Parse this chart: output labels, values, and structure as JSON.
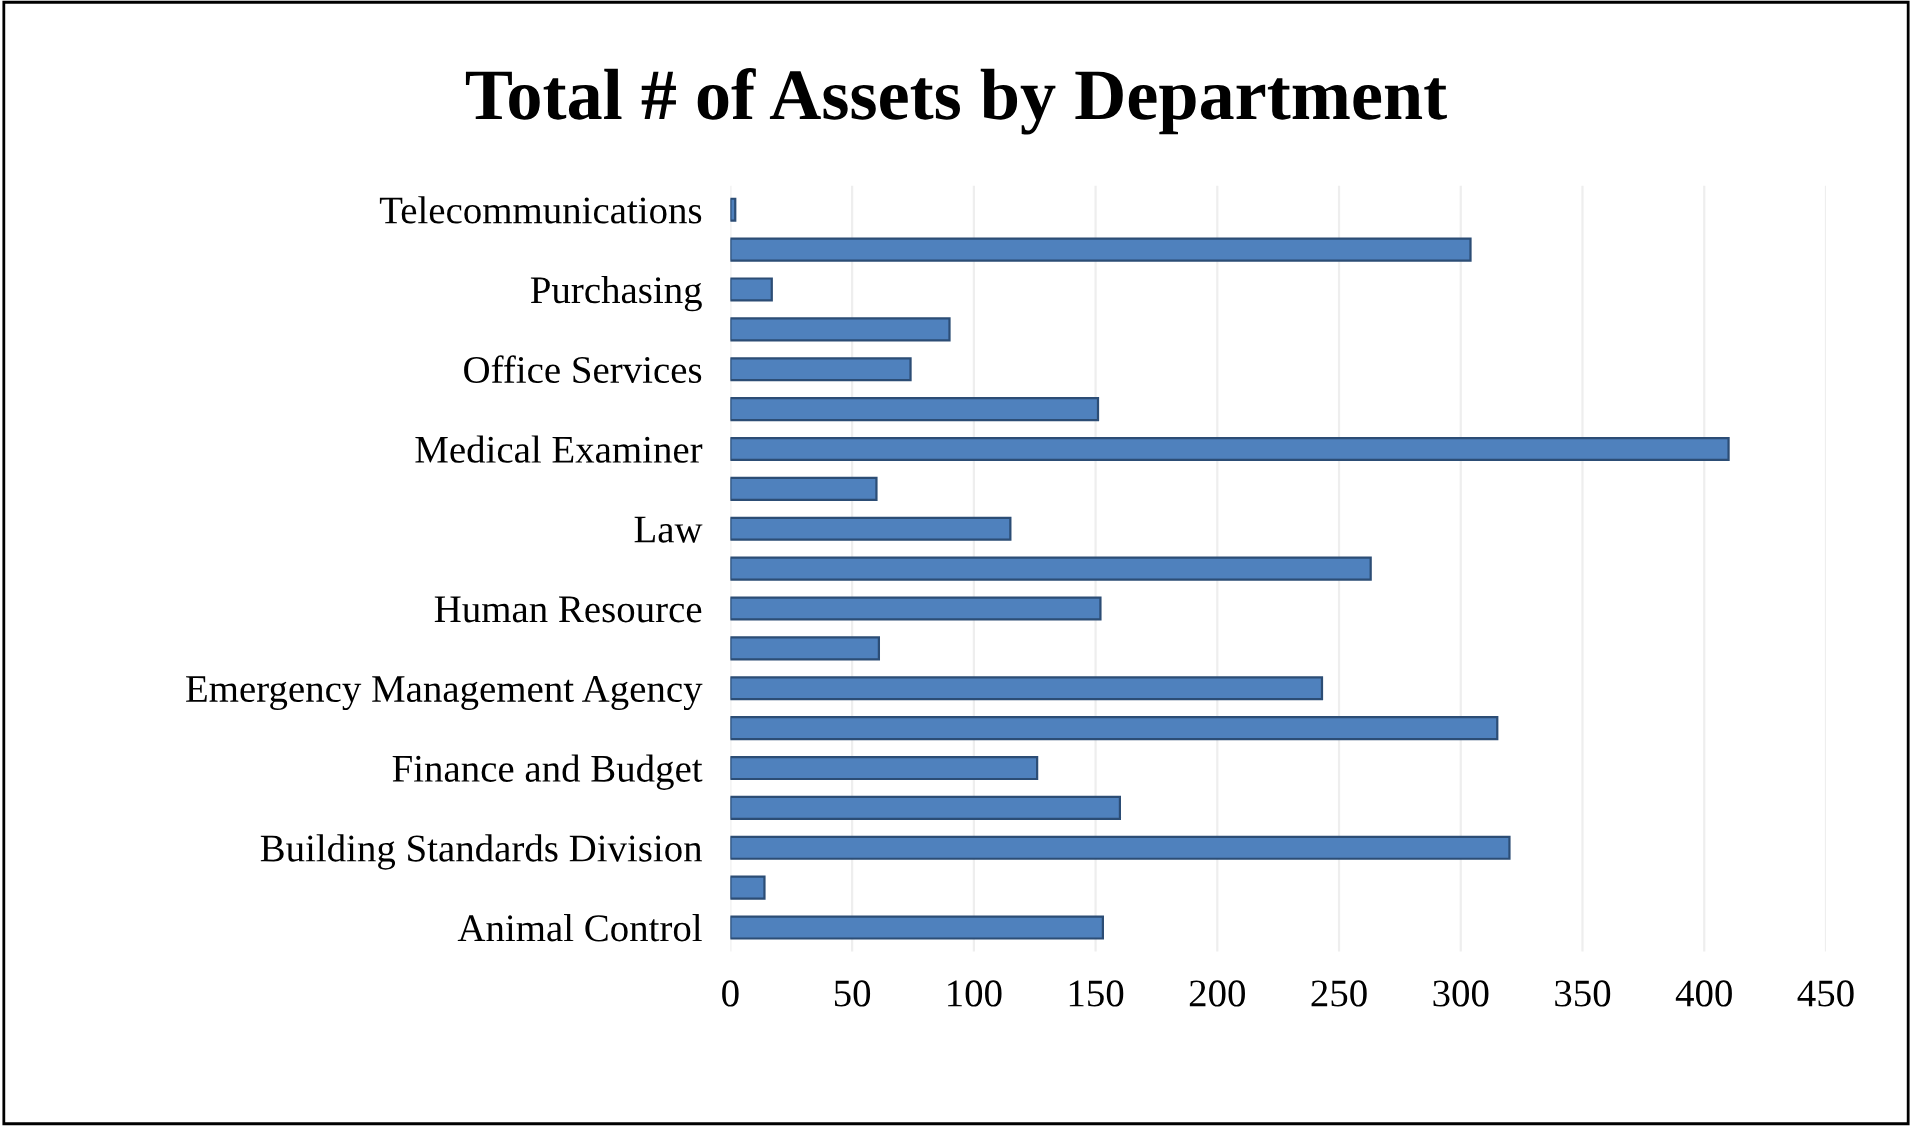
{
  "chart_data": {
    "type": "bar",
    "orientation": "horizontal",
    "title": "Total # of Assets by Department",
    "categories": [
      "Telecommunications",
      null,
      "Purchasing",
      null,
      "Office Services",
      null,
      "Medical Examiner",
      null,
      "Law",
      null,
      "Human Resource",
      null,
      "Emergency Management Agency",
      null,
      "Finance and Budget",
      null,
      "Building Standards Division",
      null,
      "Animal Control"
    ],
    "values": [
      2,
      304,
      17,
      90,
      74,
      151,
      410,
      60,
      115,
      263,
      152,
      61,
      243,
      315,
      126,
      160,
      320,
      14,
      153
    ],
    "color": "#4f81bd",
    "xlim": [
      0,
      450
    ],
    "xticks": [
      0,
      50,
      100,
      150,
      200,
      250,
      300,
      350,
      400,
      450
    ],
    "grid": "x"
  }
}
